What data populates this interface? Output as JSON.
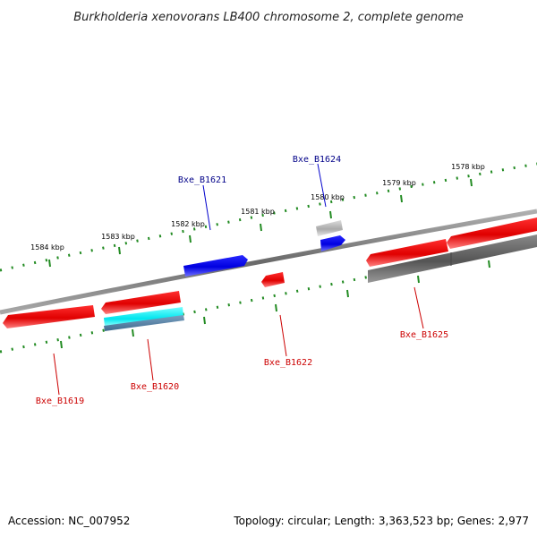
{
  "title": "Burkholderia xenovorans LB400 chromosome 2, complete genome",
  "footer": {
    "accession": "Accession: NC_007952",
    "summary": "Topology: circular; Length: 3,363,523 bp; Genes: 2,977"
  },
  "colors": {
    "backbone": "#8a8a8a",
    "ruler_ticks": "#228b22",
    "forward_gene": "#0000ff",
    "reverse_gene": "#ff0000",
    "rna_gene": "#00e5ee",
    "other_feature": "#7f7f7f",
    "label_forward": "#00008b",
    "label_reverse": "#cc0000"
  },
  "ruler_labels": [
    "1584 kbp",
    "1583 kbp",
    "1582 kbp",
    "1581 kbp",
    "1580 kbp",
    "1579 kbp",
    "1578 kbp"
  ],
  "gene_labels": [
    {
      "id": "Bxe_B1619",
      "strand": "reverse"
    },
    {
      "id": "Bxe_B1620",
      "strand": "reverse"
    },
    {
      "id": "Bxe_B1621",
      "strand": "forward"
    },
    {
      "id": "Bxe_B1622",
      "strand": "reverse"
    },
    {
      "id": "Bxe_B1624",
      "strand": "forward"
    },
    {
      "id": "Bxe_B1625",
      "strand": "reverse"
    }
  ]
}
